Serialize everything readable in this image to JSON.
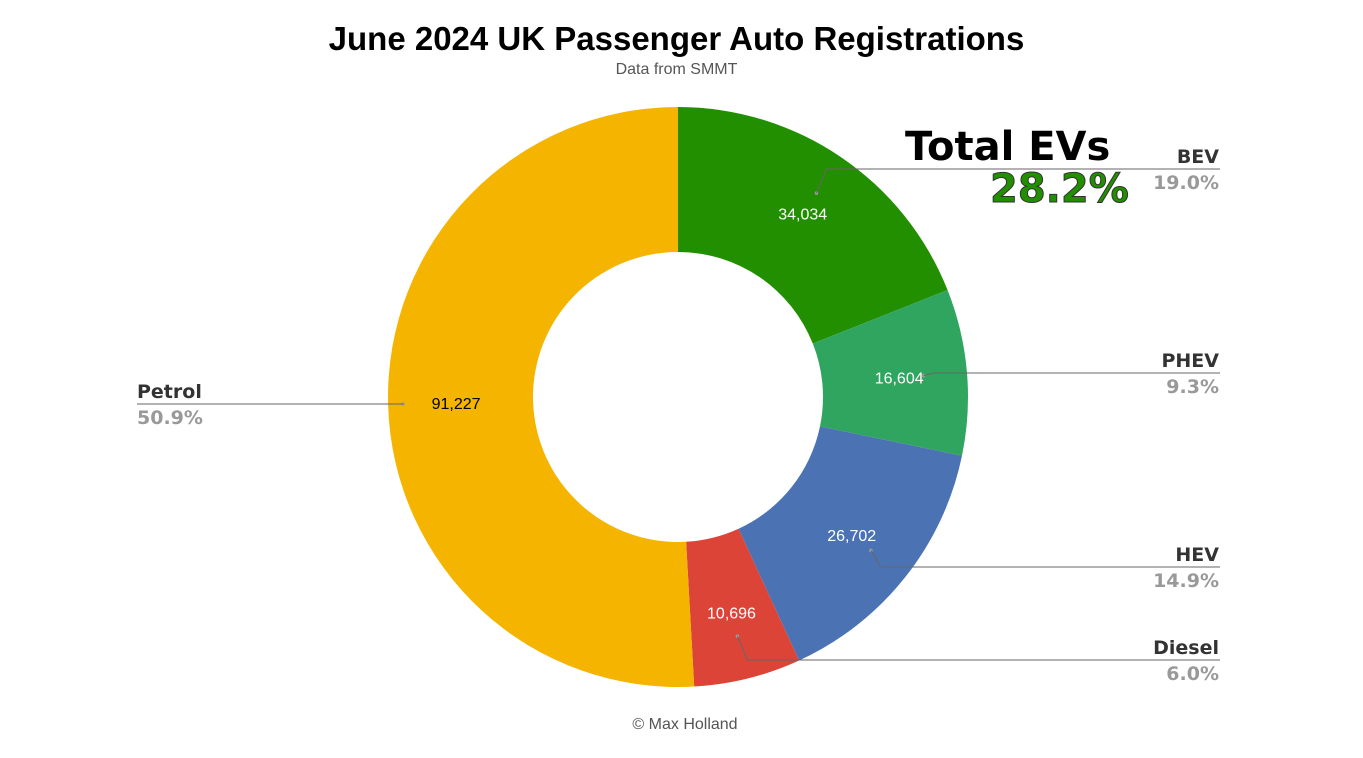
{
  "chart_data": {
    "type": "pie",
    "donut": true,
    "title": "June 2024 UK Passenger Auto Registrations",
    "subtitle": "Data from SMMT",
    "credit": "© Max Holland",
    "annotation": {
      "title": "Total EVs",
      "value": "28.2%",
      "color": "#218f00"
    },
    "slices": [
      {
        "label": "BEV",
        "value": 34034,
        "value_label": "34,034",
        "percent": "19.0%",
        "color": "#218f00"
      },
      {
        "label": "PHEV",
        "value": 16604,
        "value_label": "16,604",
        "percent": "9.3%",
        "color": "#2fa55f"
      },
      {
        "label": "HEV",
        "value": 26702,
        "value_label": "26,702",
        "percent": "14.9%",
        "color": "#4b73b4"
      },
      {
        "label": "Diesel",
        "value": 10696,
        "value_label": "10,696",
        "percent": "6.0%",
        "color": "#dc4437"
      },
      {
        "label": "Petrol",
        "value": 91227,
        "value_label": "91,227",
        "percent": "50.9%",
        "color": "#f4b400"
      }
    ]
  }
}
